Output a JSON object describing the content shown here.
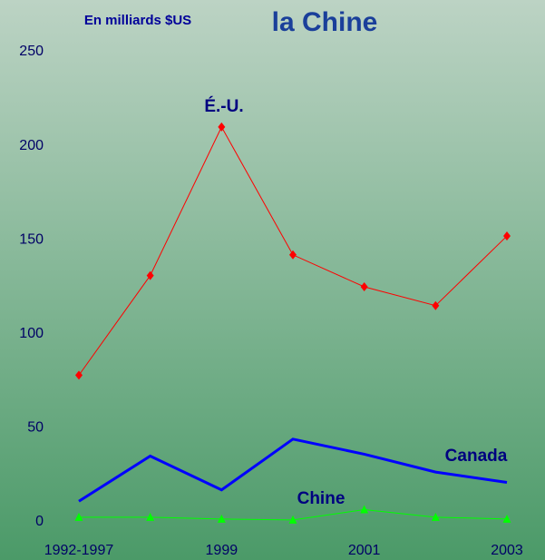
{
  "chart_data": {
    "type": "line",
    "title": "la Chine",
    "subtitle": "En milliards $US",
    "categories": [
      "1992-1997",
      null,
      "1999",
      null,
      "2001",
      null,
      "2003"
    ],
    "series": [
      {
        "name": "É.-U.",
        "color": "#ff0000",
        "marker": "diamond",
        "linewidth": 1,
        "values": [
          78,
          131,
          210,
          142,
          125,
          115,
          152
        ]
      },
      {
        "name": "Canada",
        "color": "#0000ff",
        "marker": "none",
        "linewidth": 3,
        "values": [
          11,
          35,
          17,
          44,
          36,
          26.5,
          21
        ]
      },
      {
        "name": "Chine",
        "color": "#00ff00",
        "marker": "triangle",
        "linewidth": 1,
        "values": [
          2.5,
          2.5,
          1.5,
          1,
          6.5,
          2.5,
          1.5
        ]
      }
    ],
    "ylim": [
      0,
      250
    ],
    "yticks": [
      0,
      50,
      100,
      150,
      200,
      250
    ],
    "grid": false
  }
}
